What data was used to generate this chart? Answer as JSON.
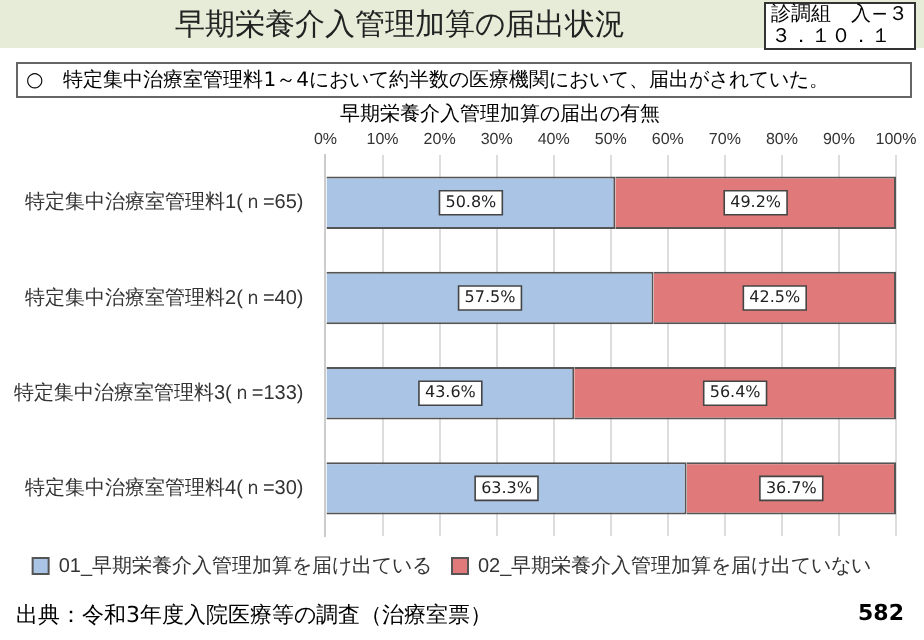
{
  "chart_data": {
    "type": "bar",
    "orientation": "horizontal",
    "stacked": true,
    "title": "早期栄養介入管理加算の届出状況",
    "subtitle": "早期栄養介入管理加算の届出の有無",
    "annotations": [
      "診調組　入−３",
      "３．１０．１",
      "○　特定集中治療室管理料1～4において約半数の医療機関において、届出がされていた。",
      "出典：令和3年度入院医療等の調査（治療室票）",
      "582"
    ],
    "categories": [
      "特定集中治療室管理料1(ｎ=65)",
      "特定集中治療室管理料2(ｎ=40)",
      "特定集中治療室管理料3(ｎ=133)",
      "特定集中治療室管理料4(ｎ=30)"
    ],
    "series": [
      {
        "name": "01_早期栄養介入管理加算を届け出ている",
        "color": "#a9c4e4",
        "values": [
          50.8,
          57.5,
          43.6,
          63.3
        ],
        "value_labels": [
          "50.8%",
          "57.5%",
          "43.6%",
          "63.3%"
        ]
      },
      {
        "name": "02_早期栄養介入管理加算を届け出ていない",
        "color": "#e07a7a",
        "values": [
          49.2,
          42.5,
          56.4,
          36.7
        ],
        "value_labels": [
          "49.2%",
          "42.5%",
          "56.4%",
          "36.7%"
        ]
      }
    ],
    "xlim": [
      0,
      100
    ],
    "xticks": [
      {
        "value": 0,
        "label": "0%"
      },
      {
        "value": 10,
        "label": "10%"
      },
      {
        "value": 20,
        "label": "20%"
      },
      {
        "value": 30,
        "label": "30%"
      },
      {
        "value": 40,
        "label": "40%"
      },
      {
        "value": 50,
        "label": "50%"
      },
      {
        "value": 60,
        "label": "60%"
      },
      {
        "value": 70,
        "label": "70%"
      },
      {
        "value": 80,
        "label": "80%"
      },
      {
        "value": 90,
        "label": "90%"
      },
      {
        "value": 100,
        "label": "100%"
      }
    ],
    "grid": "x",
    "legend": "bottom"
  }
}
